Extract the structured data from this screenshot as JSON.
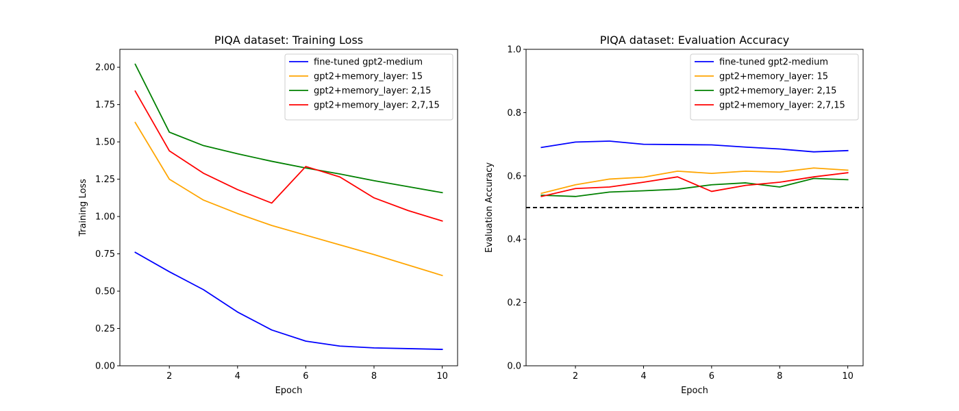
{
  "chart_data": [
    {
      "type": "line",
      "title": "PIQA dataset: Training Loss",
      "xlabel": "Epoch",
      "ylabel": "Training Loss",
      "xlim": [
        0.55,
        10.45
      ],
      "ylim": [
        0.0,
        2.12
      ],
      "xticks": [
        2,
        4,
        6,
        8,
        10
      ],
      "xtick_labels": [
        "2",
        "4",
        "6",
        "8",
        "10"
      ],
      "yticks": [
        0.0,
        0.25,
        0.5,
        0.75,
        1.0,
        1.25,
        1.5,
        1.75,
        2.0
      ],
      "ytick_labels": [
        "0.00",
        "0.25",
        "0.50",
        "0.75",
        "1.00",
        "1.25",
        "1.50",
        "1.75",
        "2.00"
      ],
      "legend_position": "top-right",
      "grid": false,
      "x": [
        1,
        2,
        3,
        4,
        5,
        6,
        7,
        8,
        9,
        10
      ],
      "series": [
        {
          "name": "fine-tuned gpt2-medium",
          "color": "#0000ff",
          "values": [
            0.76,
            0.63,
            0.51,
            0.36,
            0.24,
            0.165,
            0.132,
            0.12,
            0.115,
            0.11
          ]
        },
        {
          "name": "gpt2+memory_layer: 15",
          "color": "#ffa500",
          "values": [
            1.63,
            1.25,
            1.11,
            1.02,
            0.94,
            0.875,
            0.81,
            0.745,
            0.675,
            0.605
          ]
        },
        {
          "name": "gpt2+memory_layer: 2,15",
          "color": "#008000",
          "values": [
            2.02,
            1.565,
            1.475,
            1.42,
            1.37,
            1.325,
            1.285,
            1.24,
            1.2,
            1.16
          ]
        },
        {
          "name": "gpt2+memory_layer: 2,7,15",
          "color": "#ff0000",
          "values": [
            1.84,
            1.44,
            1.29,
            1.18,
            1.09,
            1.335,
            1.265,
            1.125,
            1.04,
            0.97
          ]
        }
      ]
    },
    {
      "type": "line",
      "title": "PIQA dataset: Evaluation Accuracy",
      "xlabel": "Epoch",
      "ylabel": "Evaluation Accuracy",
      "xlim": [
        0.55,
        10.45
      ],
      "ylim": [
        0.0,
        1.0
      ],
      "xticks": [
        2,
        4,
        6,
        8,
        10
      ],
      "xtick_labels": [
        "2",
        "4",
        "6",
        "8",
        "10"
      ],
      "yticks": [
        0.0,
        0.2,
        0.4,
        0.6,
        0.8,
        1.0
      ],
      "ytick_labels": [
        "0.0",
        "0.2",
        "0.4",
        "0.6",
        "0.8",
        "1.0"
      ],
      "legend_position": "top-right",
      "grid": false,
      "reference_line": {
        "y": 0.5,
        "color": "#000000",
        "style": "dashed"
      },
      "x": [
        1,
        2,
        3,
        4,
        5,
        6,
        7,
        8,
        9,
        10
      ],
      "series": [
        {
          "name": "fine-tuned gpt2-medium",
          "color": "#0000ff",
          "values": [
            0.69,
            0.707,
            0.71,
            0.7,
            0.699,
            0.698,
            0.691,
            0.685,
            0.676,
            0.68
          ]
        },
        {
          "name": "gpt2+memory_layer: 15",
          "color": "#ffa500",
          "values": [
            0.545,
            0.572,
            0.59,
            0.596,
            0.615,
            0.608,
            0.615,
            0.612,
            0.625,
            0.618
          ]
        },
        {
          "name": "gpt2+memory_layer: 2,15",
          "color": "#008000",
          "values": [
            0.539,
            0.535,
            0.549,
            0.553,
            0.558,
            0.572,
            0.578,
            0.565,
            0.592,
            0.588
          ]
        },
        {
          "name": "gpt2+memory_layer: 2,7,15",
          "color": "#ff0000",
          "values": [
            0.535,
            0.56,
            0.565,
            0.58,
            0.597,
            0.551,
            0.57,
            0.58,
            0.597,
            0.61
          ]
        }
      ]
    }
  ]
}
